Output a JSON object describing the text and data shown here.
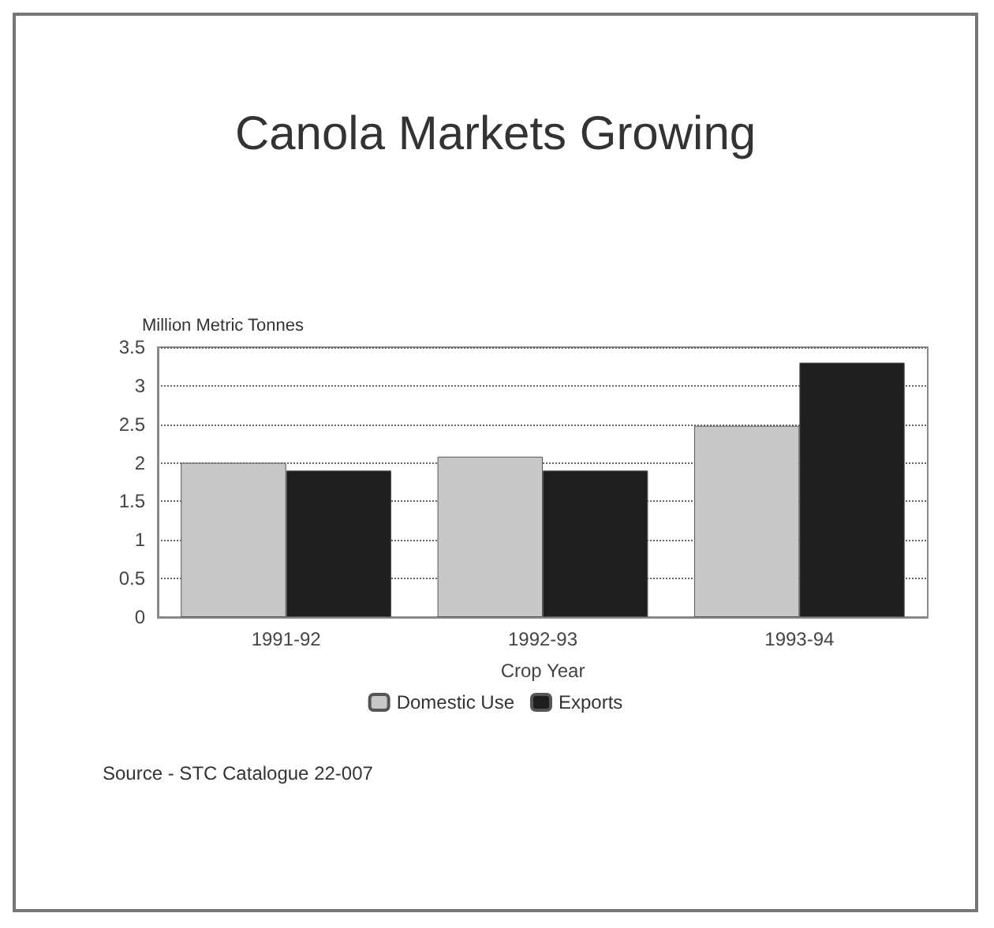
{
  "chart_data": {
    "type": "bar",
    "title": "Canola Markets Growing",
    "ylabel": "Million Metric Tonnes",
    "xlabel": "Crop Year",
    "categories": [
      "1991-92",
      "1992-93",
      "1993-94"
    ],
    "series": [
      {
        "name": "Domestic Use",
        "color": "#c8c8c8",
        "values": [
          2.0,
          2.08,
          2.48
        ]
      },
      {
        "name": "Exports",
        "color": "#1e1e1e",
        "values": [
          1.9,
          1.9,
          3.3
        ]
      }
    ],
    "ylim": [
      0,
      3.5
    ],
    "yticks": [
      0,
      0.5,
      1,
      1.5,
      2,
      2.5,
      3,
      3.5
    ],
    "grid": "y",
    "legend": "bottom",
    "annotations": [
      "Source - STC Catalogue 22-007"
    ]
  }
}
